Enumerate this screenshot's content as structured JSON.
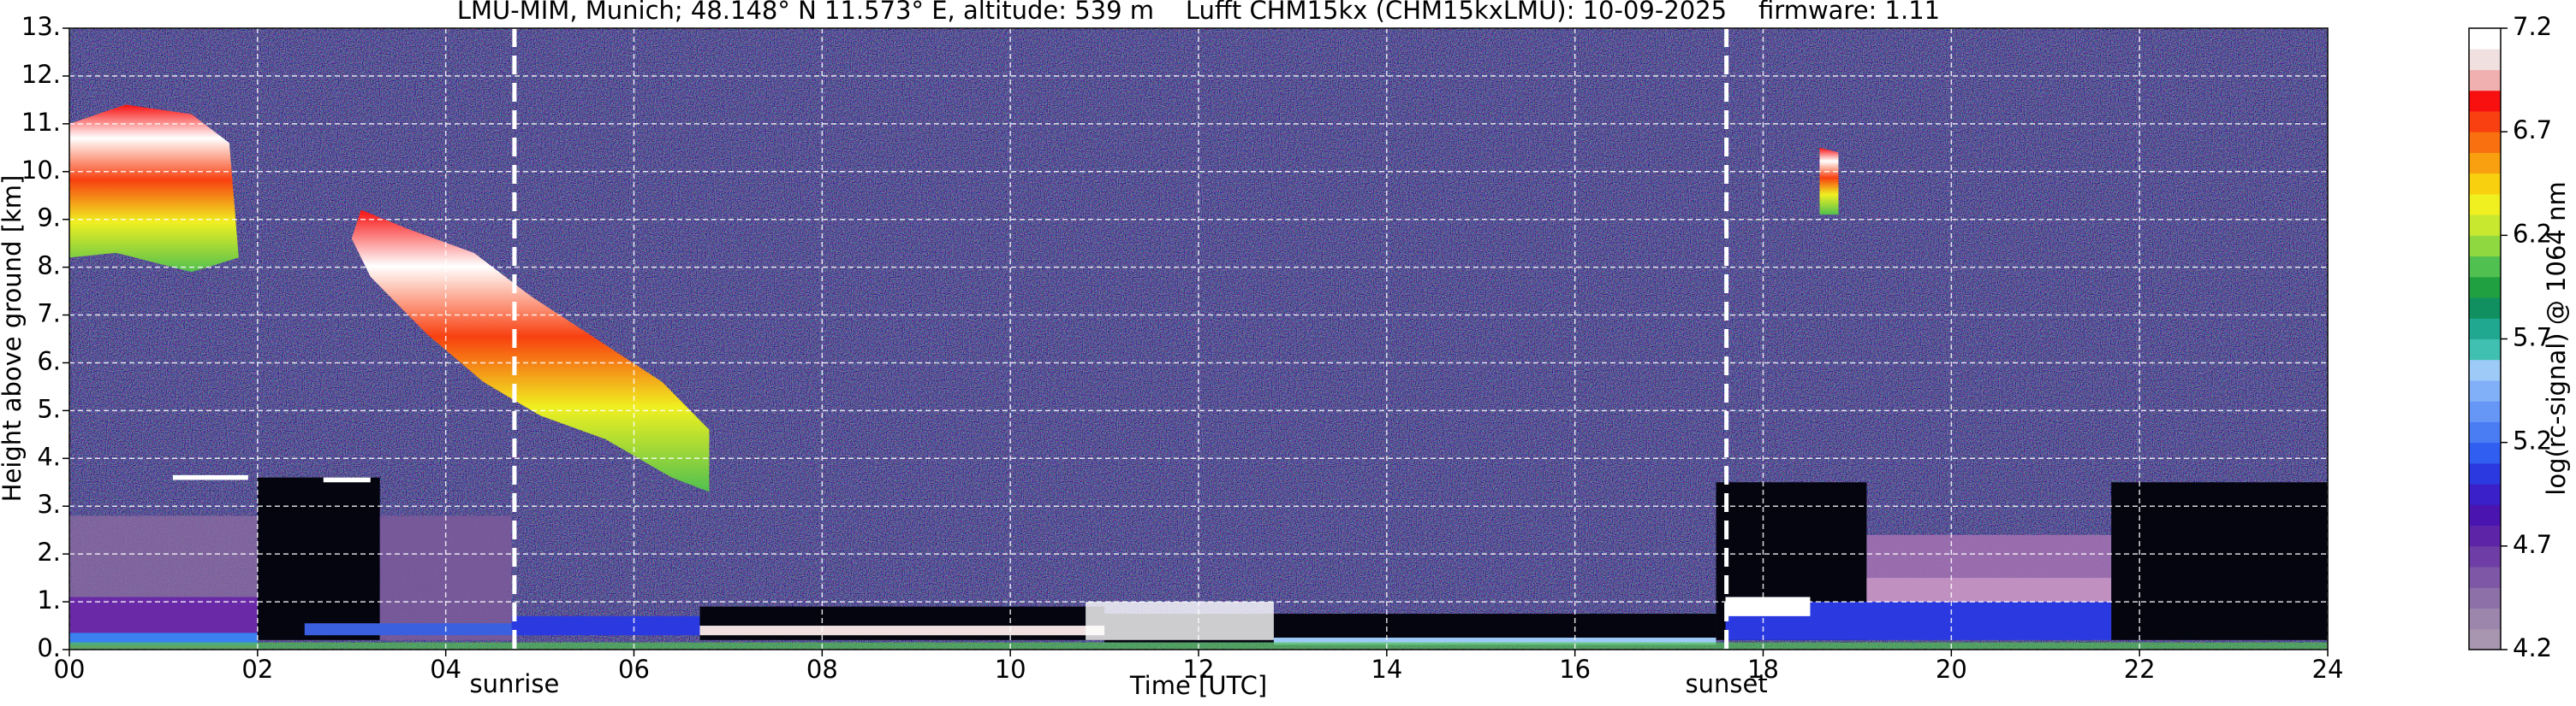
{
  "chart_data": {
    "type": "heatmap",
    "title": "LMU-MIM, Munich; 48.148° N 11.573° E, altitude: 539 m    Lufft CHM15kx (CHM15kxLMU): 10-09-2025    firmware: 1.11",
    "xlabel": "Time [UTC]",
    "ylabel": "Height above ground [km]",
    "colorbar_label": "log(rc-signal) @ 1064 nm",
    "xlim": [
      0,
      24
    ],
    "xticks": [
      {
        "value": 0,
        "label": "00"
      },
      {
        "value": 2,
        "label": "02"
      },
      {
        "value": 4,
        "label": "04"
      },
      {
        "value": 6,
        "label": "06"
      },
      {
        "value": 8,
        "label": "08"
      },
      {
        "value": 10,
        "label": "10"
      },
      {
        "value": 12,
        "label": "12"
      },
      {
        "value": 14,
        "label": "14"
      },
      {
        "value": 16,
        "label": "16"
      },
      {
        "value": 18,
        "label": "18"
      },
      {
        "value": 20,
        "label": "20"
      },
      {
        "value": 22,
        "label": "22"
      },
      {
        "value": 24,
        "label": "24"
      }
    ],
    "ylim": [
      0,
      13
    ],
    "yticks": [
      {
        "value": 0,
        "label": "0."
      },
      {
        "value": 1,
        "label": "1."
      },
      {
        "value": 2,
        "label": "2."
      },
      {
        "value": 3,
        "label": "3."
      },
      {
        "value": 4,
        "label": "4."
      },
      {
        "value": 5,
        "label": "5."
      },
      {
        "value": 6,
        "label": "6."
      },
      {
        "value": 7,
        "label": "7."
      },
      {
        "value": 8,
        "label": "8."
      },
      {
        "value": 9,
        "label": "9."
      },
      {
        "value": 10,
        "label": "10."
      },
      {
        "value": 11,
        "label": "11."
      },
      {
        "value": 12,
        "label": "12."
      },
      {
        "value": 13,
        "label": "13."
      }
    ],
    "grid": true,
    "clim": [
      4.2,
      7.2
    ],
    "cticks": [
      4.2,
      4.7,
      5.2,
      5.7,
      6.2,
      6.7,
      7.2
    ],
    "colormap": [
      "#a896b0",
      "#9c86ac",
      "#8e70a8",
      "#7e58a6",
      "#6e3ea6",
      "#5e24a8",
      "#4a14b0",
      "#3a20c8",
      "#2a3ae0",
      "#2f5ef0",
      "#4a7cf4",
      "#6696f6",
      "#82b0f8",
      "#9ecaf8",
      "#40c0b0",
      "#20a890",
      "#109060",
      "#20a040",
      "#50c050",
      "#90d840",
      "#c8e830",
      "#f0f020",
      "#f8d010",
      "#f8a010",
      "#f87010",
      "#f84010",
      "#f81010",
      "#f0b0b0",
      "#f0e0e0",
      "#ffffff"
    ],
    "annotations": [
      {
        "label": "sunrise",
        "x": 4.73
      },
      {
        "label": "sunset",
        "x": 17.61
      }
    ]
  }
}
